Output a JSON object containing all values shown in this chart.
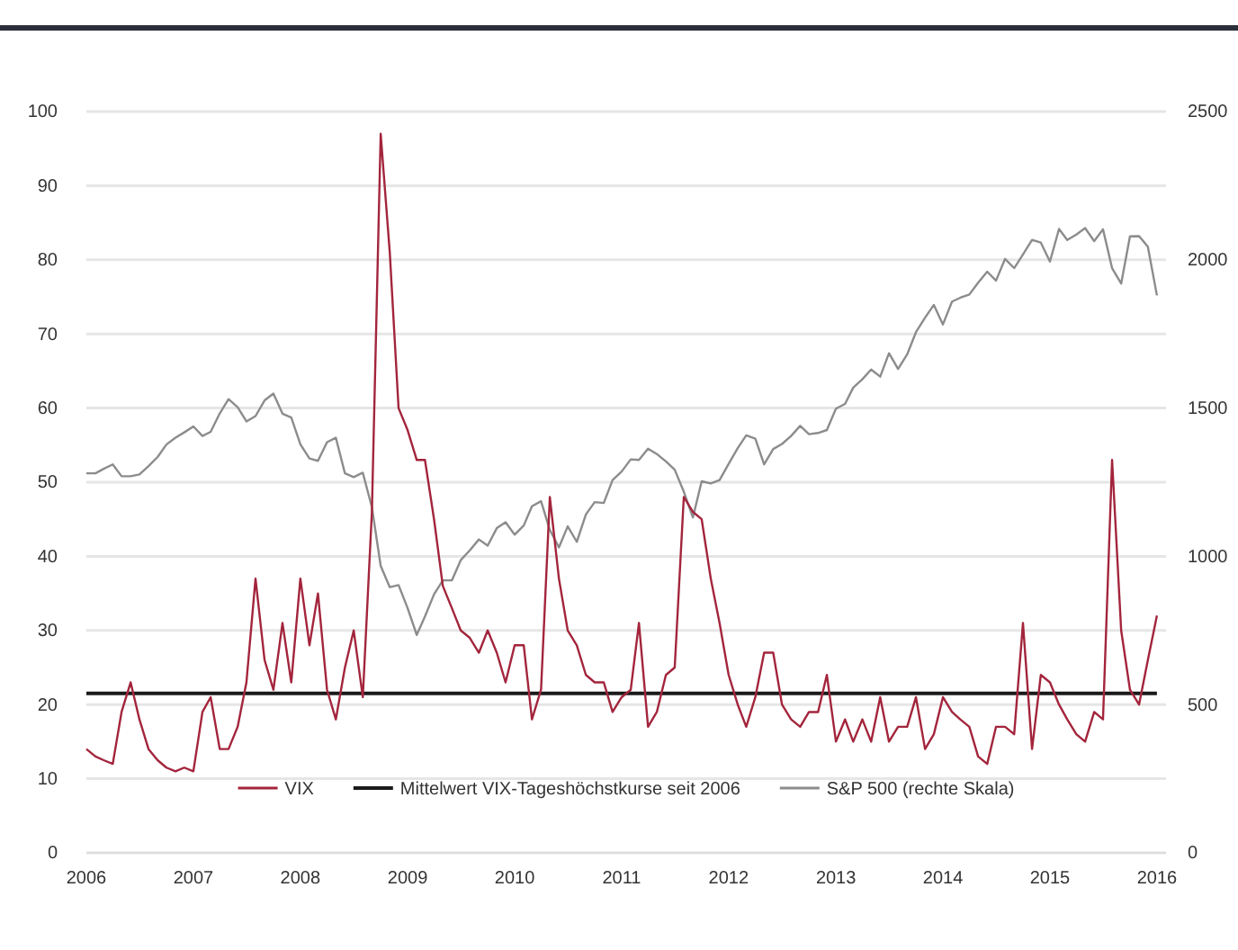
{
  "chart_data": {
    "type": "line",
    "xlim": [
      "2006",
      "2016-02"
    ],
    "xticks": [
      "2006",
      "2007",
      "2008",
      "2009",
      "2010",
      "2011",
      "2012",
      "2013",
      "2014",
      "2015",
      "2016"
    ],
    "ylim": [
      0,
      100
    ],
    "yticks": [
      0,
      10,
      20,
      30,
      40,
      50,
      60,
      70,
      80,
      90,
      100
    ],
    "y2lim": [
      0,
      2500
    ],
    "y2ticks": [
      0,
      500,
      1000,
      1500,
      2000,
      2500
    ],
    "grid": "y",
    "legend": "bottom",
    "line_style": "solid",
    "marker": "none",
    "series": [
      {
        "name": "VIX",
        "color": "#a3253c",
        "x": [
          "2006-01",
          "2006-02",
          "2006-03",
          "2006-04",
          "2006-05",
          "2006-06",
          "2006-07",
          "2006-08",
          "2006-09",
          "2006-10",
          "2006-11",
          "2006-12",
          "2007-01",
          "2007-02",
          "2007-03",
          "2007-04",
          "2007-05",
          "2007-06",
          "2007-07",
          "2007-08",
          "2007-09",
          "2007-10",
          "2007-11",
          "2007-12",
          "2008-01",
          "2008-02",
          "2008-03",
          "2008-04",
          "2008-05",
          "2008-06",
          "2008-07",
          "2008-08",
          "2008-09",
          "2008-10",
          "2008-11",
          "2008-12",
          "2009-01",
          "2009-02",
          "2009-03",
          "2009-04",
          "2009-05",
          "2009-06",
          "2009-07",
          "2009-08",
          "2009-09",
          "2009-10",
          "2009-11",
          "2009-12",
          "2010-01",
          "2010-02",
          "2010-03",
          "2010-04",
          "2010-05",
          "2010-06",
          "2010-07",
          "2010-08",
          "2010-09",
          "2010-10",
          "2010-11",
          "2010-12",
          "2011-01",
          "2011-02",
          "2011-03",
          "2011-04",
          "2011-05",
          "2011-06",
          "2011-07",
          "2011-08",
          "2011-09",
          "2011-10",
          "2011-11",
          "2011-12",
          "2012-01",
          "2012-02",
          "2012-03",
          "2012-04",
          "2012-05",
          "2012-06",
          "2012-07",
          "2012-08",
          "2012-09",
          "2012-10",
          "2012-11",
          "2012-12",
          "2013-01",
          "2013-02",
          "2013-03",
          "2013-04",
          "2013-05",
          "2013-06",
          "2013-07",
          "2013-08",
          "2013-09",
          "2013-10",
          "2013-11",
          "2013-12",
          "2014-01",
          "2014-02",
          "2014-03",
          "2014-04",
          "2014-05",
          "2014-06",
          "2014-07",
          "2014-08",
          "2014-09",
          "2014-10",
          "2014-11",
          "2014-12",
          "2015-01",
          "2015-02",
          "2015-03",
          "2015-04",
          "2015-05",
          "2015-06",
          "2015-07",
          "2015-08",
          "2015-09",
          "2015-10",
          "2015-11",
          "2015-12",
          "2016-01"
        ],
        "values": [
          14,
          13,
          12.5,
          12,
          19,
          23,
          18,
          14,
          12.5,
          11.5,
          11,
          11.5,
          11,
          19,
          21,
          14,
          14,
          17,
          23,
          37,
          26,
          22,
          31,
          23,
          37,
          28,
          35,
          22,
          18,
          25,
          30,
          21,
          46,
          97,
          81,
          60,
          57,
          53,
          53,
          45,
          36,
          33,
          30,
          29,
          27,
          30,
          27,
          23,
          28,
          28,
          18,
          22,
          48,
          37,
          30,
          28,
          24,
          23,
          23,
          19,
          21,
          22,
          31,
          17,
          19,
          24,
          25,
          48,
          46,
          45,
          37,
          31,
          24,
          20,
          17,
          21,
          27,
          27,
          20,
          18,
          17,
          19,
          19,
          24,
          15,
          18,
          15,
          18,
          15,
          21,
          15,
          17,
          17,
          21,
          14,
          16,
          21,
          19,
          18,
          17,
          13,
          12,
          17,
          17,
          16,
          31,
          14,
          24,
          23,
          20,
          18,
          16,
          15,
          19,
          18,
          53,
          30,
          22,
          20,
          26,
          32
        ]
      },
      {
        "name": "Mittelwert VIX-Tageshöchstkurse seit 2006",
        "color": "#1a1a1a",
        "x": [
          "2006-01",
          "2016-01"
        ],
        "values": [
          21.5,
          21.5
        ]
      },
      {
        "name": "S&P 500 (rechte Skala)",
        "color": "#8c8c8c",
        "axis": "y2",
        "x": [
          "2006-01",
          "2006-02",
          "2006-03",
          "2006-04",
          "2006-05",
          "2006-06",
          "2006-07",
          "2006-08",
          "2006-09",
          "2006-10",
          "2006-11",
          "2006-12",
          "2007-01",
          "2007-02",
          "2007-03",
          "2007-04",
          "2007-05",
          "2007-06",
          "2007-07",
          "2007-08",
          "2007-09",
          "2007-10",
          "2007-11",
          "2007-12",
          "2008-01",
          "2008-02",
          "2008-03",
          "2008-04",
          "2008-05",
          "2008-06",
          "2008-07",
          "2008-08",
          "2008-09",
          "2008-10",
          "2008-11",
          "2008-12",
          "2009-01",
          "2009-02",
          "2009-03",
          "2009-04",
          "2009-05",
          "2009-06",
          "2009-07",
          "2009-08",
          "2009-09",
          "2009-10",
          "2009-11",
          "2009-12",
          "2010-01",
          "2010-02",
          "2010-03",
          "2010-04",
          "2010-05",
          "2010-06",
          "2010-07",
          "2010-08",
          "2010-09",
          "2010-10",
          "2010-11",
          "2010-12",
          "2011-01",
          "2011-02",
          "2011-03",
          "2011-04",
          "2011-05",
          "2011-06",
          "2011-07",
          "2011-08",
          "2011-09",
          "2011-10",
          "2011-11",
          "2011-12",
          "2012-01",
          "2012-02",
          "2012-03",
          "2012-04",
          "2012-05",
          "2012-06",
          "2012-07",
          "2012-08",
          "2012-09",
          "2012-10",
          "2012-11",
          "2012-12",
          "2013-01",
          "2013-02",
          "2013-03",
          "2013-04",
          "2013-05",
          "2013-06",
          "2013-07",
          "2013-08",
          "2013-09",
          "2013-10",
          "2013-11",
          "2013-12",
          "2014-01",
          "2014-02",
          "2014-03",
          "2014-04",
          "2014-05",
          "2014-06",
          "2014-07",
          "2014-08",
          "2014-09",
          "2014-10",
          "2014-11",
          "2014-12",
          "2015-01",
          "2015-02",
          "2015-03",
          "2015-04",
          "2015-05",
          "2015-06",
          "2015-07",
          "2015-08",
          "2015-09",
          "2015-10",
          "2015-11",
          "2015-12",
          "2016-01"
        ],
        "values": [
          1280,
          1280,
          1295,
          1310,
          1270,
          1270,
          1276,
          1304,
          1335,
          1377,
          1400,
          1418,
          1438,
          1406,
          1420,
          1482,
          1530,
          1503,
          1455,
          1473,
          1526,
          1549,
          1481,
          1468,
          1378,
          1330,
          1322,
          1385,
          1400,
          1280,
          1267,
          1282,
          1166,
          968,
          896,
          903,
          825,
          735,
          797,
          872,
          919,
          919,
          987,
          1020,
          1057,
          1036,
          1095,
          1115,
          1073,
          1104,
          1169,
          1186,
          1089,
          1030,
          1101,
          1049,
          1141,
          1183,
          1180,
          1257,
          1286,
          1327,
          1325,
          1363,
          1345,
          1320,
          1292,
          1218,
          1131,
          1253,
          1246,
          1257,
          1312,
          1365,
          1408,
          1397,
          1310,
          1362,
          1379,
          1406,
          1440,
          1412,
          1416,
          1426,
          1498,
          1514,
          1569,
          1597,
          1630,
          1606,
          1685,
          1632,
          1681,
          1756,
          1805,
          1848,
          1782,
          1859,
          1872,
          1883,
          1923,
          1960,
          1930,
          2003,
          1972,
          2018,
          2067,
          2058,
          1994,
          2104,
          2067,
          2085,
          2107,
          2063,
          2103,
          1972,
          1920,
          2079,
          2080,
          2044,
          1880
        ]
      }
    ]
  }
}
